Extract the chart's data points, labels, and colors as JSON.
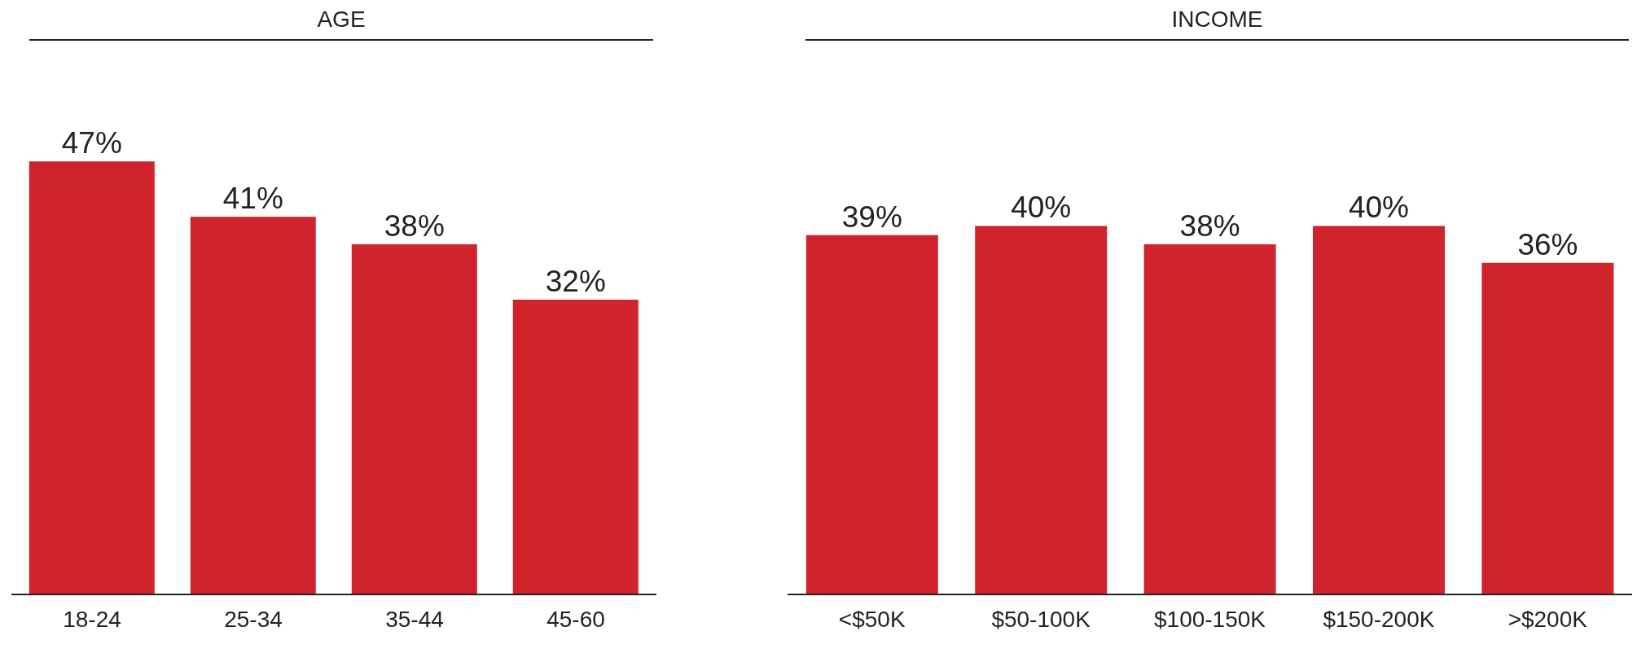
{
  "chart_data": [
    {
      "type": "bar",
      "title": "AGE",
      "categories": [
        "18-24",
        "25-34",
        "35-44",
        "45-60"
      ],
      "values": [
        47,
        41,
        38,
        32
      ],
      "value_labels": [
        "47%",
        "41%",
        "38%",
        "32%"
      ],
      "color": "#d0232b",
      "tick_labels": "x",
      "grid": false,
      "legend": false
    },
    {
      "type": "bar",
      "title": "INCOME",
      "categories": [
        "<$50K",
        "$50-100K",
        "$100-150K",
        "$150-200K",
        ">$200K"
      ],
      "values": [
        39,
        40,
        38,
        40,
        36
      ],
      "value_labels": [
        "39%",
        "40%",
        "38%",
        "40%",
        "36%"
      ],
      "color": "#d0232b",
      "tick_labels": "x",
      "grid": false,
      "legend": false
    }
  ]
}
